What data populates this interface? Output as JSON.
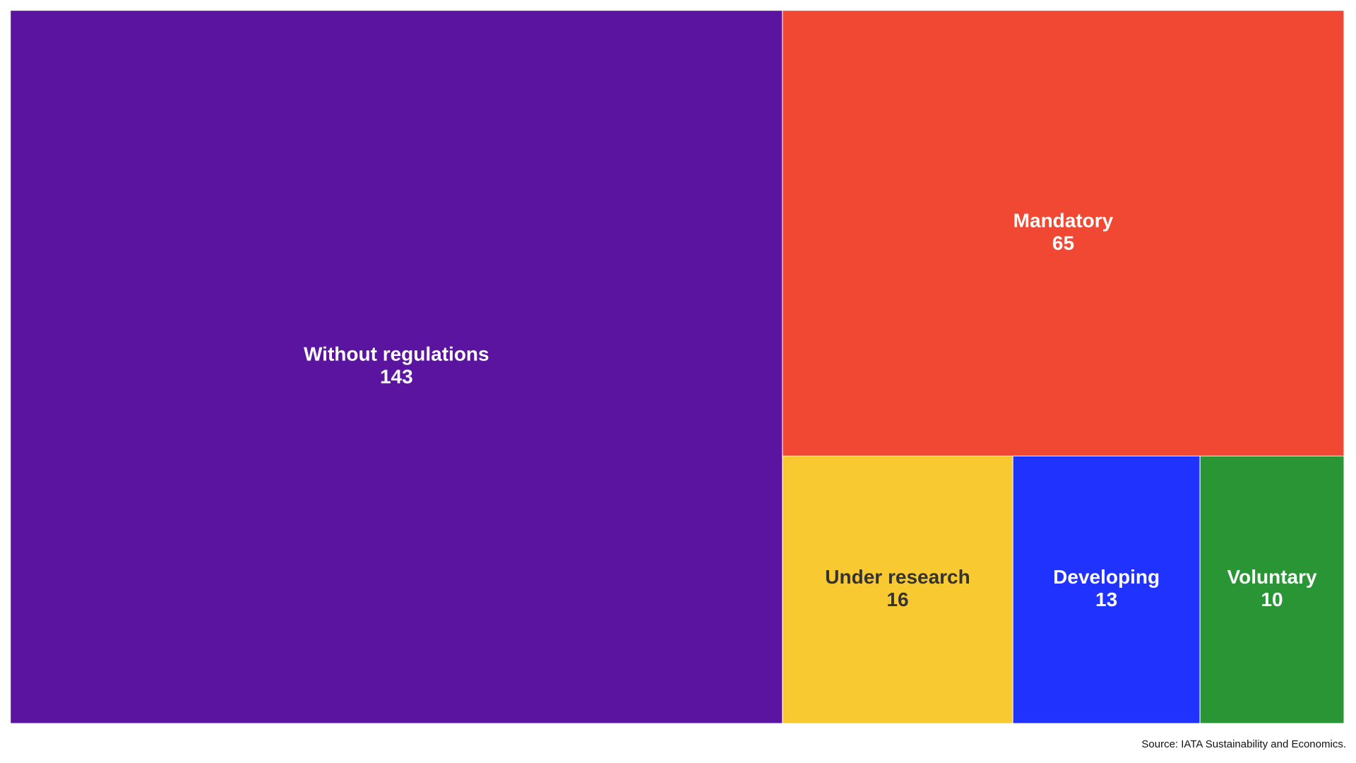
{
  "chart_data": {
    "type": "treemap",
    "categories": [
      "Without regulations",
      "Mandatory",
      "Under research",
      "Developing",
      "Voluntary"
    ],
    "values": [
      143,
      65,
      16,
      13,
      10
    ],
    "colors": [
      "#5a14a0",
      "#f04832",
      "#f9c932",
      "#2033fe",
      "#299535"
    ],
    "source": "Source: IATA Sustainability and Economics."
  }
}
